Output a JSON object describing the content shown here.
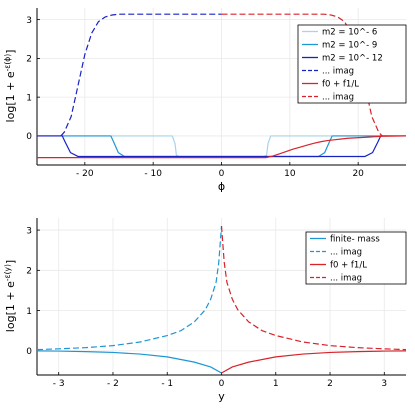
{
  "chart_data": [
    {
      "type": "line",
      "xlabel": "ϕ",
      "ylabel_base": "log[1 + e",
      "ylabel_sup": "-ε(ϕ)",
      "ylabel_end": "]",
      "xlim": [
        -27,
        27
      ],
      "ylim": [
        -0.75,
        3.3
      ],
      "xticks": [
        -20,
        -10,
        0,
        10,
        20
      ],
      "xtick_labels": [
        "- 20",
        "- 10",
        "0",
        "10",
        "20"
      ],
      "yticks": [
        0,
        1,
        2,
        3
      ],
      "ytick_labels": [
        "0",
        "1",
        "2",
        "3"
      ],
      "grid": true,
      "legend_position": "top-right",
      "series": [
        {
          "name": "m2 = 10^- 6",
          "style": "solid",
          "color": "#a6d4ea",
          "x": [
            -27,
            -7.2,
            -6.8,
            -6.6,
            -6,
            6,
            6.6,
            6.8,
            7.2,
            27
          ],
          "y": [
            0,
            0,
            -0.2,
            -0.5,
            -0.55,
            -0.55,
            -0.5,
            -0.2,
            0,
            0
          ]
        },
        {
          "name": "m2 = 10^- 9",
          "style": "solid",
          "color": "#1e96d3",
          "x": [
            -27,
            -16.2,
            -15.8,
            -15.1,
            -14.2,
            14.2,
            15.1,
            15.8,
            16.2,
            27
          ],
          "y": [
            0,
            0,
            -0.15,
            -0.43,
            -0.53,
            -0.53,
            -0.43,
            -0.15,
            0,
            0
          ]
        },
        {
          "name": "m2 = 10^- 12",
          "style": "solid",
          "color": "#1822c2",
          "x": [
            -27,
            -23.3,
            -22.9,
            -22.1,
            -21,
            21,
            22.1,
            22.9,
            23.3,
            27
          ],
          "y": [
            0,
            0,
            -0.15,
            -0.43,
            -0.53,
            -0.53,
            -0.43,
            -0.15,
            0,
            0
          ]
        },
        {
          "name": "... imag",
          "style": "dashed",
          "color": "#1822c2",
          "x": [
            -23.5,
            -23,
            -22,
            -21,
            -20,
            -19,
            -18,
            -17,
            -16,
            -15,
            0
          ],
          "y": [
            0,
            0.1,
            0.5,
            1.3,
            2.1,
            2.65,
            2.95,
            3.07,
            3.12,
            3.14,
            3.14
          ]
        },
        {
          "name": "f0 + f1/L",
          "style": "solid",
          "color": "#d8232a",
          "x": [
            -27,
            6.5,
            7.5,
            8.5,
            9.5,
            10.5,
            11.5,
            12.5,
            13.5,
            14.5,
            15.5,
            16.5,
            17.5,
            18.5,
            19.5,
            20.5,
            21.5,
            22.5,
            23.5,
            27
          ],
          "y": [
            -0.56,
            -0.56,
            -0.52,
            -0.46,
            -0.4,
            -0.34,
            -0.29,
            -0.24,
            -0.19,
            -0.15,
            -0.12,
            -0.1,
            -0.08,
            -0.06,
            -0.05,
            -0.04,
            -0.03,
            -0.02,
            -0.01,
            0
          ]
        },
        {
          "name": "... imag",
          "style": "dashed",
          "color": "#d8232a",
          "x": [
            0,
            15,
            16,
            17,
            18,
            19,
            20,
            21,
            22,
            23,
            23.5
          ],
          "y": [
            3.14,
            3.14,
            3.12,
            3.07,
            2.95,
            2.65,
            2.1,
            1.3,
            0.5,
            0.1,
            0
          ]
        }
      ]
    },
    {
      "type": "line",
      "xlabel": "y",
      "ylabel_base": "log[1 + e",
      "ylabel_sup": "-ε(y)",
      "ylabel_end": "]",
      "xlim": [
        -3.4,
        3.4
      ],
      "ylim": [
        -0.6,
        3.3
      ],
      "xticks": [
        -3,
        -2,
        -1,
        0,
        1,
        2,
        3
      ],
      "xtick_labels": [
        "- 3",
        "- 2",
        "- 1",
        "0",
        "1",
        "2",
        "3"
      ],
      "yticks": [
        0,
        1,
        2,
        3
      ],
      "ytick_labels": [
        "0",
        "1",
        "2",
        "3"
      ],
      "grid": true,
      "legend_position": "top-right",
      "series": [
        {
          "name": "finite- mass",
          "style": "solid",
          "color": "#1e96d3",
          "x": [
            -3.4,
            -3,
            -2.5,
            -2,
            -1.5,
            -1,
            -0.5,
            -0.2,
            0
          ],
          "y": [
            0,
            -0.005,
            -0.02,
            -0.04,
            -0.08,
            -0.15,
            -0.28,
            -0.4,
            -0.55
          ]
        },
        {
          "name": "... imag",
          "style": "dashed",
          "color": "#1e96d3",
          "x": [
            -3.4,
            -3,
            -2.5,
            -2,
            -1.5,
            -1,
            -0.75,
            -0.5,
            -0.3,
            -0.2,
            -0.1,
            -0.05,
            0
          ],
          "y": [
            0.03,
            0.05,
            0.08,
            0.13,
            0.22,
            0.38,
            0.5,
            0.72,
            1.02,
            1.28,
            1.7,
            2.2,
            3.1
          ]
        },
        {
          "name": "f0 + f1/L",
          "style": "solid",
          "color": "#d8232a",
          "x": [
            0,
            0.2,
            0.5,
            1,
            1.5,
            2,
            2.5,
            3,
            3.4
          ],
          "y": [
            -0.55,
            -0.4,
            -0.28,
            -0.15,
            -0.08,
            -0.04,
            -0.02,
            -0.005,
            0
          ]
        },
        {
          "name": "... imag",
          "style": "dashed",
          "color": "#d8232a",
          "x": [
            0,
            0.05,
            0.1,
            0.2,
            0.3,
            0.5,
            0.75,
            1,
            1.5,
            2,
            2.5,
            3,
            3.4
          ],
          "y": [
            3.1,
            2.2,
            1.7,
            1.28,
            1.02,
            0.72,
            0.5,
            0.38,
            0.22,
            0.13,
            0.08,
            0.05,
            0.03
          ]
        }
      ]
    }
  ]
}
